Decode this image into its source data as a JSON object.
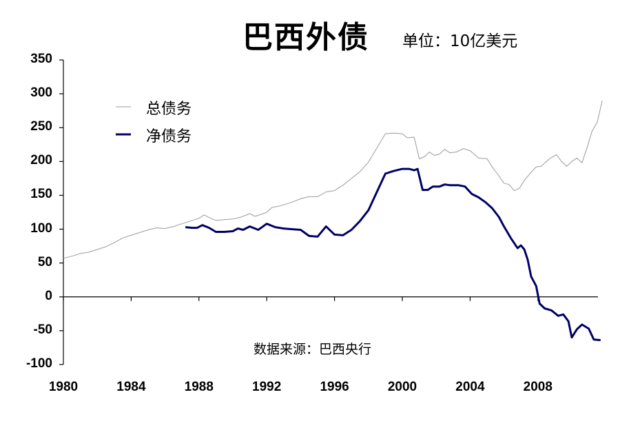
{
  "header": {
    "title": "巴西外债",
    "unit": "单位：10亿美元"
  },
  "legend": {
    "items": [
      {
        "label": "总债务",
        "color": "#999999"
      },
      {
        "label": "净债务",
        "color": "#000066"
      }
    ]
  },
  "source": "数据来源：巴西央行",
  "axes": {
    "y_ticks": [
      "350",
      "300",
      "250",
      "200",
      "150",
      "100",
      "50",
      "0",
      "-50",
      "-100"
    ],
    "x_ticks": [
      "1980",
      "1984",
      "1988",
      "1992",
      "1996",
      "2000",
      "2004",
      "2008"
    ]
  },
  "chart_data": {
    "type": "line",
    "title": "巴西外债",
    "subtitle": "单位：10亿美元",
    "xlabel": "",
    "ylabel": "",
    "ylim": [
      -100,
      350
    ],
    "xlim": [
      1980,
      2011.8
    ],
    "grid": false,
    "legend_position": "upper-left",
    "annotation": "数据来源：巴西央行",
    "series": [
      {
        "name": "总债务",
        "color": "#999999",
        "points": [
          [
            1980.0,
            57
          ],
          [
            1980.5,
            60
          ],
          [
            1981.0,
            64
          ],
          [
            1981.5,
            66
          ],
          [
            1982.0,
            70
          ],
          [
            1982.5,
            74
          ],
          [
            1983.0,
            80
          ],
          [
            1983.5,
            87
          ],
          [
            1984.0,
            91
          ],
          [
            1984.5,
            95
          ],
          [
            1985.0,
            99
          ],
          [
            1985.5,
            102
          ],
          [
            1986.0,
            101
          ],
          [
            1986.5,
            104
          ],
          [
            1987.0,
            108
          ],
          [
            1987.5,
            112
          ],
          [
            1988.0,
            116
          ],
          [
            1988.3,
            121
          ],
          [
            1988.7,
            116
          ],
          [
            1989.0,
            113
          ],
          [
            1989.5,
            114
          ],
          [
            1990.0,
            115
          ],
          [
            1990.5,
            118
          ],
          [
            1991.0,
            123
          ],
          [
            1991.3,
            119
          ],
          [
            1991.7,
            122
          ],
          [
            1992.0,
            125
          ],
          [
            1992.3,
            132
          ],
          [
            1992.7,
            134
          ],
          [
            1993.0,
            136
          ],
          [
            1993.5,
            140
          ],
          [
            1994.0,
            145
          ],
          [
            1994.5,
            148
          ],
          [
            1995.0,
            148
          ],
          [
            1995.5,
            155
          ],
          [
            1996.0,
            157
          ],
          [
            1996.5,
            165
          ],
          [
            1997.0,
            175
          ],
          [
            1997.5,
            185
          ],
          [
            1998.0,
            199
          ],
          [
            1998.5,
            220
          ],
          [
            1999.0,
            241
          ],
          [
            1999.5,
            242
          ],
          [
            2000.0,
            241
          ],
          [
            2000.3,
            235
          ],
          [
            2000.7,
            236
          ],
          [
            2001.0,
            204
          ],
          [
            2001.3,
            207
          ],
          [
            2001.6,
            214
          ],
          [
            2001.9,
            209
          ],
          [
            2002.2,
            211
          ],
          [
            2002.5,
            218
          ],
          [
            2002.8,
            213
          ],
          [
            2003.2,
            214
          ],
          [
            2003.6,
            219
          ],
          [
            2004.0,
            216
          ],
          [
            2004.5,
            205
          ],
          [
            2005.0,
            204
          ],
          [
            2005.3,
            192
          ],
          [
            2005.6,
            182
          ],
          [
            2006.0,
            168
          ],
          [
            2006.3,
            166
          ],
          [
            2006.6,
            157
          ],
          [
            2006.9,
            160
          ],
          [
            2007.2,
            172
          ],
          [
            2007.6,
            184
          ],
          [
            2007.9,
            192
          ],
          [
            2008.2,
            193
          ],
          [
            2008.5,
            200
          ],
          [
            2008.8,
            206
          ],
          [
            2009.1,
            210
          ],
          [
            2009.4,
            200
          ],
          [
            2009.7,
            193
          ],
          [
            2010.0,
            200
          ],
          [
            2010.3,
            205
          ],
          [
            2010.6,
            198
          ],
          [
            2010.9,
            220
          ],
          [
            2011.2,
            245
          ],
          [
            2011.5,
            258
          ],
          [
            2011.8,
            290
          ]
        ]
      },
      {
        "name": "净债务",
        "color": "#000066",
        "points": [
          [
            1987.2,
            103
          ],
          [
            1987.6,
            102
          ],
          [
            1987.9,
            102
          ],
          [
            1988.2,
            106
          ],
          [
            1988.6,
            102
          ],
          [
            1989.0,
            96
          ],
          [
            1989.5,
            96
          ],
          [
            1990.0,
            97
          ],
          [
            1990.3,
            101
          ],
          [
            1990.6,
            99
          ],
          [
            1991.0,
            104
          ],
          [
            1991.5,
            99
          ],
          [
            1992.0,
            108
          ],
          [
            1992.5,
            103
          ],
          [
            1993.0,
            101
          ],
          [
            1993.5,
            100
          ],
          [
            1994.0,
            99
          ],
          [
            1994.5,
            90
          ],
          [
            1995.0,
            89
          ],
          [
            1995.5,
            104
          ],
          [
            1996.0,
            92
          ],
          [
            1996.5,
            91
          ],
          [
            1997.0,
            99
          ],
          [
            1997.5,
            112
          ],
          [
            1998.0,
            128
          ],
          [
            1998.5,
            155
          ],
          [
            1999.0,
            182
          ],
          [
            1999.5,
            186
          ],
          [
            2000.0,
            189
          ],
          [
            2000.4,
            189
          ],
          [
            2000.7,
            187
          ],
          [
            2000.9,
            189
          ],
          [
            2001.2,
            158
          ],
          [
            2001.5,
            158
          ],
          [
            2001.8,
            163
          ],
          [
            2002.2,
            163
          ],
          [
            2002.5,
            166
          ],
          [
            2002.8,
            165
          ],
          [
            2003.3,
            165
          ],
          [
            2003.7,
            163
          ],
          [
            2004.1,
            152
          ],
          [
            2004.5,
            147
          ],
          [
            2004.9,
            140
          ],
          [
            2005.3,
            131
          ],
          [
            2005.7,
            118
          ],
          [
            2006.0,
            104
          ],
          [
            2006.4,
            87
          ],
          [
            2006.8,
            72
          ],
          [
            2007.0,
            76
          ],
          [
            2007.2,
            70
          ],
          [
            2007.4,
            55
          ],
          [
            2007.6,
            30
          ],
          [
            2007.9,
            16
          ],
          [
            2008.1,
            -10
          ],
          [
            2008.4,
            -17
          ],
          [
            2008.8,
            -20
          ],
          [
            2009.2,
            -28
          ],
          [
            2009.5,
            -26
          ],
          [
            2009.8,
            -36
          ],
          [
            2010.0,
            -60
          ],
          [
            2010.3,
            -48
          ],
          [
            2010.6,
            -41
          ],
          [
            2011.0,
            -47
          ],
          [
            2011.3,
            -63
          ],
          [
            2011.7,
            -64
          ]
        ]
      }
    ]
  }
}
